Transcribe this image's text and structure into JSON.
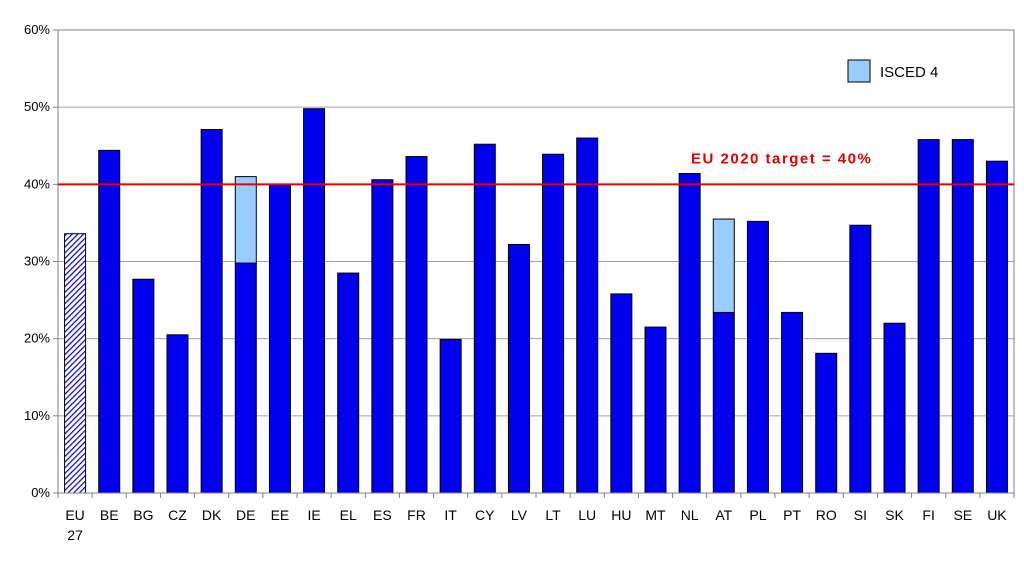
{
  "chart_data": {
    "type": "bar",
    "stacked": true,
    "categories": [
      "EU 27",
      "BE",
      "BG",
      "CZ",
      "DK",
      "DE",
      "EE",
      "IE",
      "EL",
      "ES",
      "FR",
      "IT",
      "CY",
      "LV",
      "LT",
      "LU",
      "HU",
      "MT",
      "NL",
      "AT",
      "PL",
      "PT",
      "RO",
      "SI",
      "SK",
      "FI",
      "SE",
      "UK"
    ],
    "series": [
      {
        "color": "#0000EE",
        "values": [
          33.6,
          44.4,
          27.7,
          20.5,
          47.1,
          29.8,
          40.0,
          49.8,
          28.5,
          40.6,
          43.6,
          19.9,
          45.2,
          32.2,
          43.9,
          46.0,
          25.8,
          21.5,
          41.4,
          23.4,
          35.2,
          23.4,
          18.1,
          34.7,
          22.0,
          45.8,
          45.8,
          43.0
        ]
      },
      {
        "name": "ISCED 4",
        "color": "#99CCFF",
        "values": [
          0,
          0,
          0,
          0,
          0,
          11.2,
          0,
          0,
          0,
          0,
          0,
          0,
          0,
          0,
          0,
          0,
          0,
          0,
          0,
          12.1,
          0,
          0,
          0,
          0,
          0,
          0,
          0,
          0
        ]
      }
    ],
    "highlight": {
      "category": "EU 27",
      "style": "hatched"
    },
    "target_line": {
      "value": 40,
      "label": "EU 2020 target = 40%",
      "color": "#E00000"
    },
    "ylim": [
      0,
      60
    ],
    "yticks": [
      0,
      10,
      20,
      30,
      40,
      50,
      60
    ],
    "ytick_labels": [
      "0%",
      "10%",
      "20%",
      "30%",
      "40%",
      "50%",
      "60%"
    ],
    "grid": true,
    "legend": {
      "position": "top-right",
      "entries": [
        "ISCED 4"
      ]
    },
    "title": "",
    "xlabel": "",
    "ylabel": ""
  }
}
